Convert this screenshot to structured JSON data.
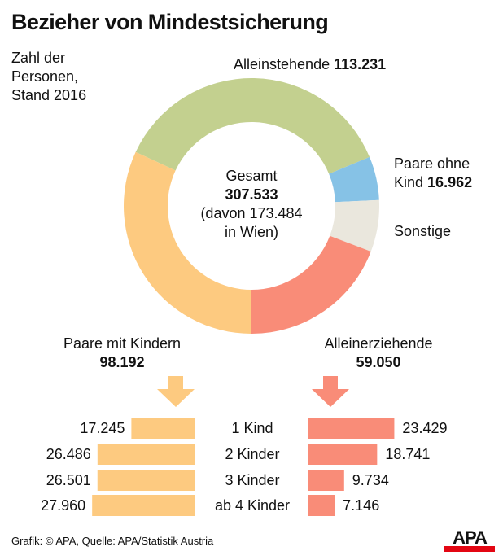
{
  "title": "Bezieher von Mindestsicherung",
  "subtitle": [
    "Zahl der",
    "Personen,",
    "Stand 2016"
  ],
  "center": {
    "label": "Gesamt",
    "total": "307.533",
    "note_1": "(davon 173.484",
    "note_2": "in Wien)"
  },
  "labels": {
    "alleinstehende": {
      "name": "Alleinstehende",
      "value": "113.231"
    },
    "paare_ohne": {
      "name_1": "Paare ohne",
      "name_2": "Kind",
      "value": "16.962"
    },
    "sonstige": {
      "name": "Sonstige"
    },
    "pmk": {
      "name": "Paare mit Kindern",
      "value": "98.192"
    },
    "alleinerz": {
      "name": "Alleinerziehende",
      "value": "59.050"
    }
  },
  "rows": [
    "1 Kind",
    "2 Kinder",
    "3 Kinder",
    "ab 4 Kinder"
  ],
  "left_values_text": [
    "17.245",
    "26.486",
    "26.501",
    "27.960"
  ],
  "right_values_text": [
    "23.429",
    "18.741",
    "9.734",
    "7.146"
  ],
  "footer": "Grafik: © APA, Quelle: APA/Statistik Austria",
  "logo": "APA",
  "colors": {
    "alleinstehende": "#c3d08f",
    "paare_ohne": "#86c2e6",
    "sonstige": "#eae7dd",
    "alleinerz": "#f98c78",
    "pmk": "#fdca80",
    "logo_red": "#e30613"
  },
  "chart_data": [
    {
      "type": "pie",
      "title": "Bezieher von Mindestsicherung",
      "subtitle": "Zahl der Personen, Stand 2016",
      "total": 307533,
      "total_note": "davon 173.484 in Wien",
      "slices": [
        {
          "name": "Alleinstehende",
          "value": 113231
        },
        {
          "name": "Paare ohne Kind",
          "value": 16962
        },
        {
          "name": "Sonstige",
          "value": null
        },
        {
          "name": "Alleinerziehende",
          "value": 59050
        },
        {
          "name": "Paare mit Kindern",
          "value": 98192
        }
      ]
    },
    {
      "type": "bar",
      "title": "Paare mit Kindern",
      "categories": [
        "1 Kind",
        "2 Kinder",
        "3 Kinder",
        "ab 4 Kinder"
      ],
      "values": [
        17245,
        26486,
        26501,
        27960
      ]
    },
    {
      "type": "bar",
      "title": "Alleinerziehende",
      "categories": [
        "1 Kind",
        "2 Kinder",
        "3 Kinder",
        "ab 4 Kinder"
      ],
      "values": [
        23429,
        18741,
        9734,
        7146
      ]
    }
  ]
}
